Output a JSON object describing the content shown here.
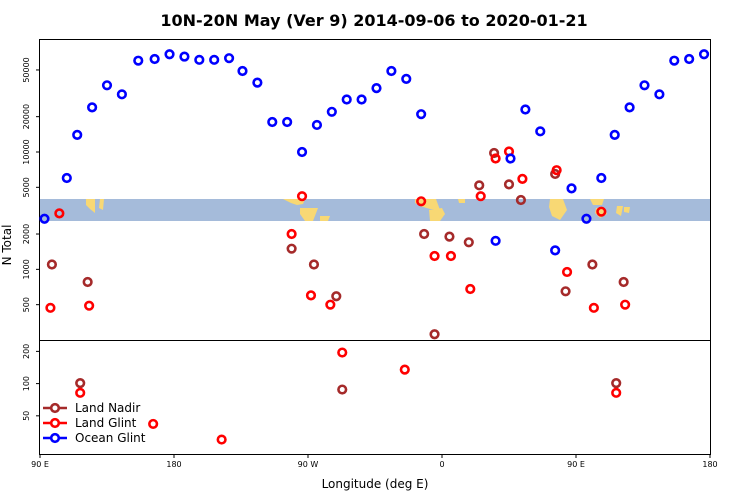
{
  "chart_data": {
    "type": "scatter",
    "title": "10N-20N May (Ver 9)   2014-09-06 to 2020-01-21",
    "xlabel": "Longitude (deg E)",
    "ylabel": "N Total",
    "x_ticks": [
      {
        "value": 90,
        "label": "90 E"
      },
      {
        "value": 180,
        "label": "180"
      },
      {
        "value": 270,
        "label": "90 W"
      },
      {
        "value": 360,
        "label": "0"
      },
      {
        "value": 450,
        "label": "90 E"
      },
      {
        "value": 540,
        "label": "180"
      }
    ],
    "xlim": [
      90,
      540
    ],
    "upper_panel": {
      "scale": "log",
      "ylim": [
        250,
        90000
      ],
      "y_ticks": [
        {
          "value": 500,
          "label": "500"
        },
        {
          "value": 1000,
          "label": "1000"
        },
        {
          "value": 2000,
          "label": "2000"
        },
        {
          "value": 5000,
          "label": "5000"
        },
        {
          "value": 10000,
          "label": "10000"
        },
        {
          "value": 20000,
          "label": "20000"
        },
        {
          "value": 50000,
          "label": "50000"
        }
      ]
    },
    "lower_panel": {
      "scale": "log",
      "ylim": [
        22,
        250
      ],
      "y_ticks": [
        {
          "value": 50,
          "label": "50"
        },
        {
          "value": 100,
          "label": "100"
        },
        {
          "value": 200,
          "label": "200"
        }
      ]
    },
    "legend": {
      "position": "bottom-left"
    },
    "map_strip": {
      "ocean_color": "#a5bbda",
      "land_color": "#f8d874"
    },
    "series": [
      {
        "name": "Land Nadir",
        "color": "#a52a2a",
        "points": [
          [
            98,
            1100
          ],
          [
            117,
            101
          ],
          [
            122,
            780
          ],
          [
            259,
            1500
          ],
          [
            274,
            1100
          ],
          [
            289,
            590
          ],
          [
            293,
            88
          ],
          [
            348,
            2000
          ],
          [
            355,
            280
          ],
          [
            365,
            1900
          ],
          [
            378,
            1700
          ],
          [
            385,
            5200
          ],
          [
            395,
            9800
          ],
          [
            405,
            5300
          ],
          [
            413,
            3900
          ],
          [
            436,
            6500
          ],
          [
            443,
            650
          ],
          [
            461,
            1100
          ],
          [
            477,
            101
          ],
          [
            482,
            780
          ]
        ]
      },
      {
        "name": "Land Glint",
        "color": "#ff0000",
        "points": [
          [
            97,
            470
          ],
          [
            103,
            3000
          ],
          [
            117,
            82
          ],
          [
            123,
            490
          ],
          [
            166,
            42
          ],
          [
            212,
            30
          ],
          [
            259,
            2000
          ],
          [
            266,
            4200
          ],
          [
            272,
            600
          ],
          [
            285,
            500
          ],
          [
            293,
            195
          ],
          [
            335,
            135
          ],
          [
            346,
            3800
          ],
          [
            355,
            1300
          ],
          [
            366,
            1300
          ],
          [
            379,
            680
          ],
          [
            386,
            4200
          ],
          [
            396,
            8800
          ],
          [
            405,
            10100
          ],
          [
            414,
            5900
          ],
          [
            437,
            7000
          ],
          [
            444,
            950
          ],
          [
            462,
            470
          ],
          [
            467,
            3100
          ],
          [
            477,
            82
          ],
          [
            483,
            500
          ]
        ]
      },
      {
        "name": "Ocean Glint",
        "color": "#0000ff",
        "points": [
          [
            93,
            2700
          ],
          [
            108,
            6000
          ],
          [
            115,
            14000
          ],
          [
            125,
            24000
          ],
          [
            135,
            37000
          ],
          [
            145,
            31000
          ],
          [
            156,
            60000
          ],
          [
            167,
            62000
          ],
          [
            177,
            68000
          ],
          [
            187,
            65000
          ],
          [
            197,
            61000
          ],
          [
            207,
            61000
          ],
          [
            217,
            63000
          ],
          [
            226,
            49000
          ],
          [
            236,
            39000
          ],
          [
            246,
            18000
          ],
          [
            256,
            18000
          ],
          [
            266,
            10000
          ],
          [
            276,
            17000
          ],
          [
            286,
            22000
          ],
          [
            296,
            28000
          ],
          [
            306,
            28000
          ],
          [
            316,
            35000
          ],
          [
            326,
            49000
          ],
          [
            336,
            42000
          ],
          [
            346,
            21000
          ],
          [
            396,
            1750
          ],
          [
            406,
            8800
          ],
          [
            416,
            23000
          ],
          [
            426,
            15000
          ],
          [
            436,
            1450
          ],
          [
            447,
            4900
          ],
          [
            457,
            2700
          ],
          [
            467,
            6000
          ],
          [
            476,
            14000
          ],
          [
            486,
            24000
          ],
          [
            496,
            37000
          ],
          [
            506,
            31000
          ],
          [
            516,
            60000
          ],
          [
            526,
            62000
          ],
          [
            536,
            68000
          ]
        ]
      }
    ]
  }
}
